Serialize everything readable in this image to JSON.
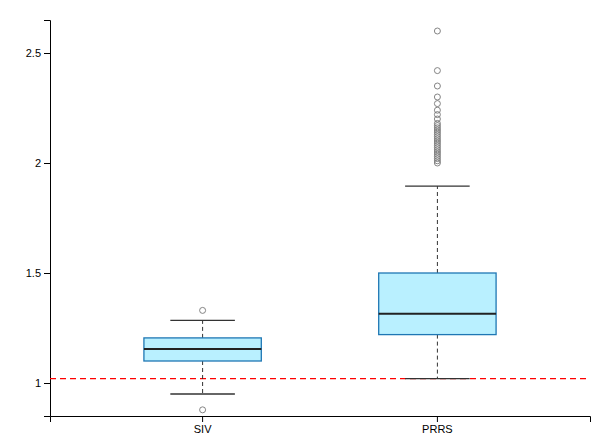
{
  "chart_data": {
    "type": "box",
    "categories": [
      "SIV",
      "PRRS"
    ],
    "boxes": [
      {
        "q1": 1.1,
        "median": 1.155,
        "q3": 1.205,
        "whisker_low": 0.95,
        "whisker_high": 1.285,
        "outliers": [
          0.878,
          1.33
        ]
      },
      {
        "q1": 1.22,
        "median": 1.315,
        "q3": 1.5,
        "whisker_low": 1.02,
        "whisker_high": 1.895,
        "outliers": [
          2.0,
          2.01,
          2.02,
          2.03,
          2.04,
          2.05,
          2.06,
          2.07,
          2.08,
          2.09,
          2.1,
          2.11,
          2.12,
          2.13,
          2.14,
          2.15,
          2.16,
          2.17,
          2.18,
          2.2,
          2.22,
          2.24,
          2.27,
          2.3,
          2.35,
          2.42,
          2.6
        ]
      }
    ],
    "reference_line": {
      "y": 1.02,
      "color": "red",
      "line_style": "dashed"
    },
    "ylim": [
      0.85,
      2.65
    ],
    "yticks": [
      1,
      1.5,
      2,
      2.5
    ]
  }
}
